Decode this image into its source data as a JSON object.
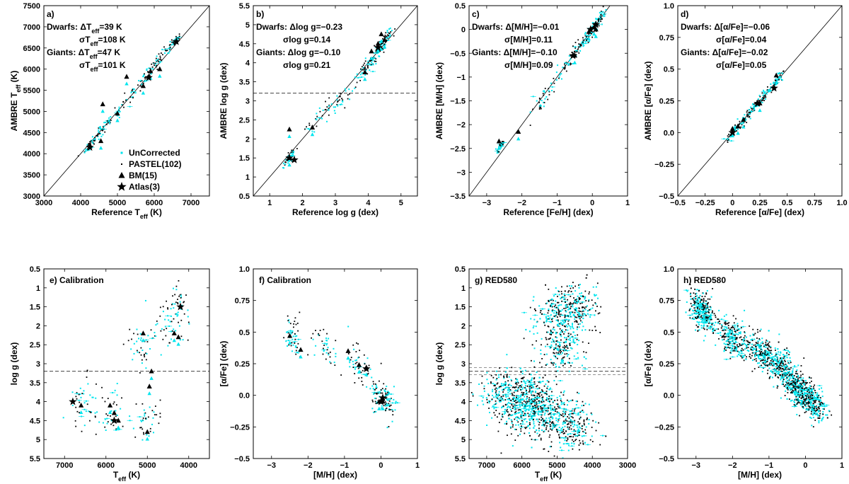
{
  "figure": {
    "colors": {
      "uncorrected": "#00e5ee",
      "pastel": "#000000",
      "bm": "#000000",
      "atlas": "#000000",
      "frame": "#000000"
    },
    "legend": [
      "UnCorrected",
      "PASTEL(102)",
      "BM(15)",
      "Atlas(3)"
    ]
  },
  "chart_data": [
    {
      "id": "a",
      "type": "scatter",
      "xlim": [
        3000,
        7500
      ],
      "ylim": [
        3000,
        7500
      ],
      "xticks": [
        3000,
        4000,
        5000,
        6000,
        7000
      ],
      "yticks": [
        3000,
        3500,
        4000,
        4500,
        5000,
        5500,
        6000,
        6500,
        7000,
        7500
      ],
      "xlabel": "Reference T_eff (K)",
      "ylabel": "AMBRE T_eff (K)",
      "reverse_x": false,
      "reverse_y": false,
      "diagonal": true,
      "hline": null,
      "annotations": [
        "a)",
        "Dwarfs: ΔT_eff=39 K",
        "σT_eff=108 K",
        "Giants: ΔT_eff=47 K",
        "σT_eff=101 K"
      ],
      "bm": [
        [
          4600,
          5170
        ],
        [
          4550,
          4300
        ],
        [
          5000,
          4950
        ],
        [
          5250,
          5820
        ],
        [
          5900,
          5950
        ],
        [
          5700,
          5600
        ],
        [
          6150,
          6000
        ]
      ],
      "atlas": [
        [
          4250,
          4150
        ],
        [
          5850,
          5800
        ],
        [
          6600,
          6650
        ]
      ],
      "cluster": [
        [
          4250,
          4200,
          150
        ],
        [
          4600,
          4600,
          200
        ],
        [
          5000,
          5000,
          250
        ],
        [
          5500,
          5550,
          300
        ],
        [
          5900,
          5950,
          250
        ],
        [
          6200,
          6300,
          250
        ],
        [
          6550,
          6650,
          150
        ]
      ],
      "n_points": 240
    },
    {
      "id": "b",
      "type": "scatter",
      "xlim": [
        0.5,
        5.5
      ],
      "ylim": [
        0.5,
        5.5
      ],
      "xticks": [
        1,
        2,
        3,
        4,
        5
      ],
      "yticks": [
        0.5,
        1,
        1.5,
        2,
        2.5,
        3,
        3.5,
        4,
        4.5,
        5,
        5.5
      ],
      "xlabel": "Reference log g (dex)",
      "ylabel": "AMBRE log g (dex)",
      "reverse_x": false,
      "reverse_y": false,
      "diagonal": true,
      "hline": 3.2,
      "annotations": [
        "b)",
        "Dwarfs: Δlog g=−0.23",
        "σlog g=0.14",
        "Giants: Δlog g=−0.10",
        "σlog g=0.21"
      ],
      "bm": [
        [
          1.6,
          2.25
        ],
        [
          1.6,
          1.5
        ],
        [
          2.3,
          2.3
        ],
        [
          3.9,
          3.75
        ],
        [
          4.1,
          4.3
        ],
        [
          4.3,
          4.5
        ],
        [
          4.5,
          4.6
        ],
        [
          4.4,
          4.75
        ]
      ],
      "atlas": [
        [
          1.6,
          1.5
        ],
        [
          1.75,
          1.45
        ],
        [
          4.3,
          4.4
        ]
      ],
      "cluster": [
        [
          1.6,
          1.5,
          0.2
        ],
        [
          2.5,
          2.6,
          0.4
        ],
        [
          3.2,
          3.0,
          0.4
        ],
        [
          4.0,
          3.9,
          0.3
        ],
        [
          4.3,
          4.3,
          0.3
        ],
        [
          4.5,
          4.6,
          0.25
        ]
      ],
      "n_points": 260
    },
    {
      "id": "c",
      "type": "scatter",
      "xlim": [
        -3.5,
        1.0
      ],
      "ylim": [
        -3.5,
        0.5
      ],
      "xticks": [
        -3,
        -2,
        -1,
        0,
        1
      ],
      "yticks": [
        -3.5,
        -3,
        -2.5,
        -2,
        -1.5,
        -1,
        -0.5,
        0,
        0.5
      ],
      "xlabel": "Reference [Fe/H] (dex)",
      "ylabel": "AMBRE [M/H] (dex)",
      "reverse_x": false,
      "reverse_y": false,
      "diagonal": true,
      "hline": null,
      "annotations": [
        "c)",
        "Dwarfs: Δ[M/H]=−0.01",
        "σ[M/H]=0.11",
        "Giants: Δ[M/H]=−0.10",
        "σ[M/H]=0.09"
      ],
      "bm": [
        [
          -2.65,
          -2.35
        ],
        [
          -2.1,
          -2.15
        ],
        [
          -0.5,
          -0.55
        ],
        [
          -0.1,
          -0.05
        ],
        [
          0.05,
          0.05
        ],
        [
          0.1,
          0.0
        ]
      ],
      "atlas": [
        [
          -0.55,
          -0.55
        ],
        [
          -0.05,
          0.0
        ],
        [
          0.1,
          0.1
        ]
      ],
      "cluster": [
        [
          -2.6,
          -2.45,
          0.1
        ],
        [
          -1.4,
          -1.5,
          0.3
        ],
        [
          -0.7,
          -0.7,
          0.3
        ],
        [
          -0.25,
          -0.3,
          0.2
        ],
        [
          0.0,
          0.0,
          0.2
        ],
        [
          0.2,
          0.2,
          0.15
        ]
      ],
      "n_points": 260
    },
    {
      "id": "d",
      "type": "scatter",
      "xlim": [
        -0.5,
        1.0
      ],
      "ylim": [
        -0.5,
        1.0
      ],
      "xticks": [
        -0.5,
        -0.25,
        0,
        0.25,
        0.5,
        0.75,
        1.0
      ],
      "yticks": [
        -0.5,
        -0.25,
        0,
        0.25,
        0.5,
        0.75,
        1.0
      ],
      "xlabel": "Reference [α/Fe] (dex)",
      "ylabel": "AMBRE [α/Fe] (dex)",
      "reverse_x": false,
      "reverse_y": false,
      "diagonal": true,
      "hline": null,
      "annotations": [
        "d)",
        "Dwarfs: Δ[α/Fe]=−0.06",
        "σ[α/Fe]=0.04",
        "Giants: Δ[α/Fe]=−0.02",
        "σ[α/Fe]=0.05"
      ],
      "bm": [
        [
          0.0,
          0.03
        ],
        [
          0.1,
          0.1
        ],
        [
          0.4,
          0.45
        ],
        [
          0.25,
          0.23
        ],
        [
          0.05,
          0.05
        ]
      ],
      "atlas": [
        [
          0.23,
          0.23
        ],
        [
          0.0,
          0.0
        ],
        [
          0.38,
          0.35
        ]
      ],
      "cluster": [
        [
          0.0,
          0.0,
          0.05
        ],
        [
          0.1,
          0.1,
          0.06
        ],
        [
          0.2,
          0.2,
          0.06
        ],
        [
          0.3,
          0.3,
          0.05
        ],
        [
          0.4,
          0.4,
          0.05
        ]
      ],
      "n_points": 220
    },
    {
      "id": "e",
      "type": "scatter",
      "xlim": [
        7500,
        3500
      ],
      "ylim": [
        5.5,
        0.5
      ],
      "xticks": [
        7000,
        6000,
        5000,
        4000
      ],
      "yticks": [
        0.5,
        1,
        1.5,
        2,
        2.5,
        3,
        3.5,
        4,
        4.5,
        5,
        5.5
      ],
      "xlabel": "T_eff (K)",
      "ylabel": "log g (dex)",
      "reverse_x": true,
      "reverse_y": true,
      "diagonal": false,
      "hline": 3.2,
      "annotations": [
        "e) Calibration"
      ],
      "bm": [
        [
          6600,
          4.1
        ],
        [
          5900,
          4.1
        ],
        [
          5800,
          4.3
        ],
        [
          5000,
          4.8
        ],
        [
          5100,
          2.2
        ],
        [
          4950,
          3.6
        ],
        [
          4250,
          2.3
        ],
        [
          4900,
          3.2
        ],
        [
          5700,
          4.5
        ],
        [
          4350,
          2.2
        ]
      ],
      "atlas": [
        [
          6800,
          4.0
        ],
        [
          5800,
          4.5
        ],
        [
          4200,
          1.5
        ]
      ],
      "cluster": [
        [
          6600,
          4.0,
          300
        ],
        [
          5900,
          4.2,
          300
        ],
        [
          5000,
          4.5,
          300
        ],
        [
          5100,
          2.5,
          300
        ],
        [
          4500,
          2.0,
          300
        ],
        [
          4200,
          1.5,
          200
        ]
      ],
      "n_points": 260
    },
    {
      "id": "f",
      "type": "scatter",
      "xlim": [
        -3.5,
        1.0
      ],
      "ylim": [
        -0.5,
        1.0
      ],
      "xticks": [
        -3,
        -2,
        -1,
        0,
        1
      ],
      "yticks": [
        -0.5,
        -0.25,
        0,
        0.25,
        0.5,
        0.75,
        1.0
      ],
      "xlabel": "[M/H] (dex)",
      "ylabel": "[α/Fe] (dex)",
      "reverse_x": false,
      "reverse_y": false,
      "diagonal": false,
      "hline": null,
      "annotations": [
        "f) Calibration"
      ],
      "bm": [
        [
          -2.5,
          0.47
        ],
        [
          -2.2,
          0.36
        ],
        [
          -0.9,
          0.35
        ],
        [
          -0.4,
          0.22
        ],
        [
          -0.05,
          -0.05
        ],
        [
          0.05,
          -0.05
        ],
        [
          -0.6,
          0.24
        ]
      ],
      "atlas": [
        [
          -0.4,
          0.21
        ],
        [
          0.0,
          -0.05
        ],
        [
          0.05,
          -0.02
        ]
      ],
      "cluster": [
        [
          -2.4,
          0.45,
          0.2
        ],
        [
          -1.5,
          0.4,
          0.3
        ],
        [
          -0.6,
          0.25,
          0.25
        ],
        [
          -0.1,
          0.0,
          0.2
        ],
        [
          0.2,
          -0.05,
          0.2
        ]
      ],
      "n_points": 260
    },
    {
      "id": "g",
      "type": "scatter",
      "xlim": [
        7500,
        3000
      ],
      "ylim": [
        5.5,
        0.5
      ],
      "xticks": [
        7000,
        6000,
        5000,
        4000,
        3000
      ],
      "yticks": [
        0.5,
        1,
        1.5,
        2,
        2.5,
        3,
        3.5,
        4,
        4.5,
        5,
        5.5
      ],
      "xlabel": "T_eff (K)",
      "ylabel": "log g (dex)",
      "reverse_x": true,
      "reverse_y": true,
      "diagonal": false,
      "hline": 3.2,
      "annotations": [
        "g) RED580"
      ],
      "bm": [],
      "atlas": [],
      "cluster": [
        [
          6000,
          4.2,
          700
        ],
        [
          5200,
          4.4,
          700
        ],
        [
          4500,
          4.6,
          500
        ],
        [
          5000,
          1.8,
          600
        ],
        [
          4400,
          1.5,
          500
        ],
        [
          4900,
          2.6,
          500
        ],
        [
          6500,
          3.8,
          600
        ],
        [
          5700,
          3.9,
          500
        ]
      ],
      "n_points": 1800
    },
    {
      "id": "h",
      "type": "scatter",
      "xlim": [
        -3.5,
        1.0
      ],
      "ylim": [
        -0.5,
        1.0
      ],
      "xticks": [
        -3,
        -2,
        -1,
        0,
        1
      ],
      "yticks": [
        -0.5,
        -0.25,
        0,
        0.25,
        0.5,
        0.75,
        1.0
      ],
      "xlabel": "[M/H] (dex)",
      "ylabel": "[α/Fe] (dex)",
      "reverse_x": false,
      "reverse_y": false,
      "diagonal": false,
      "hline": null,
      "annotations": [
        "h) RED580"
      ],
      "bm": [],
      "atlas": [],
      "cluster": [
        [
          -2.8,
          0.65,
          0.3
        ],
        [
          -2.0,
          0.45,
          0.4
        ],
        [
          -1.2,
          0.35,
          0.4
        ],
        [
          -0.6,
          0.2,
          0.35
        ],
        [
          -0.2,
          0.05,
          0.3
        ],
        [
          0.2,
          -0.05,
          0.3
        ]
      ],
      "n_points": 1800
    }
  ]
}
